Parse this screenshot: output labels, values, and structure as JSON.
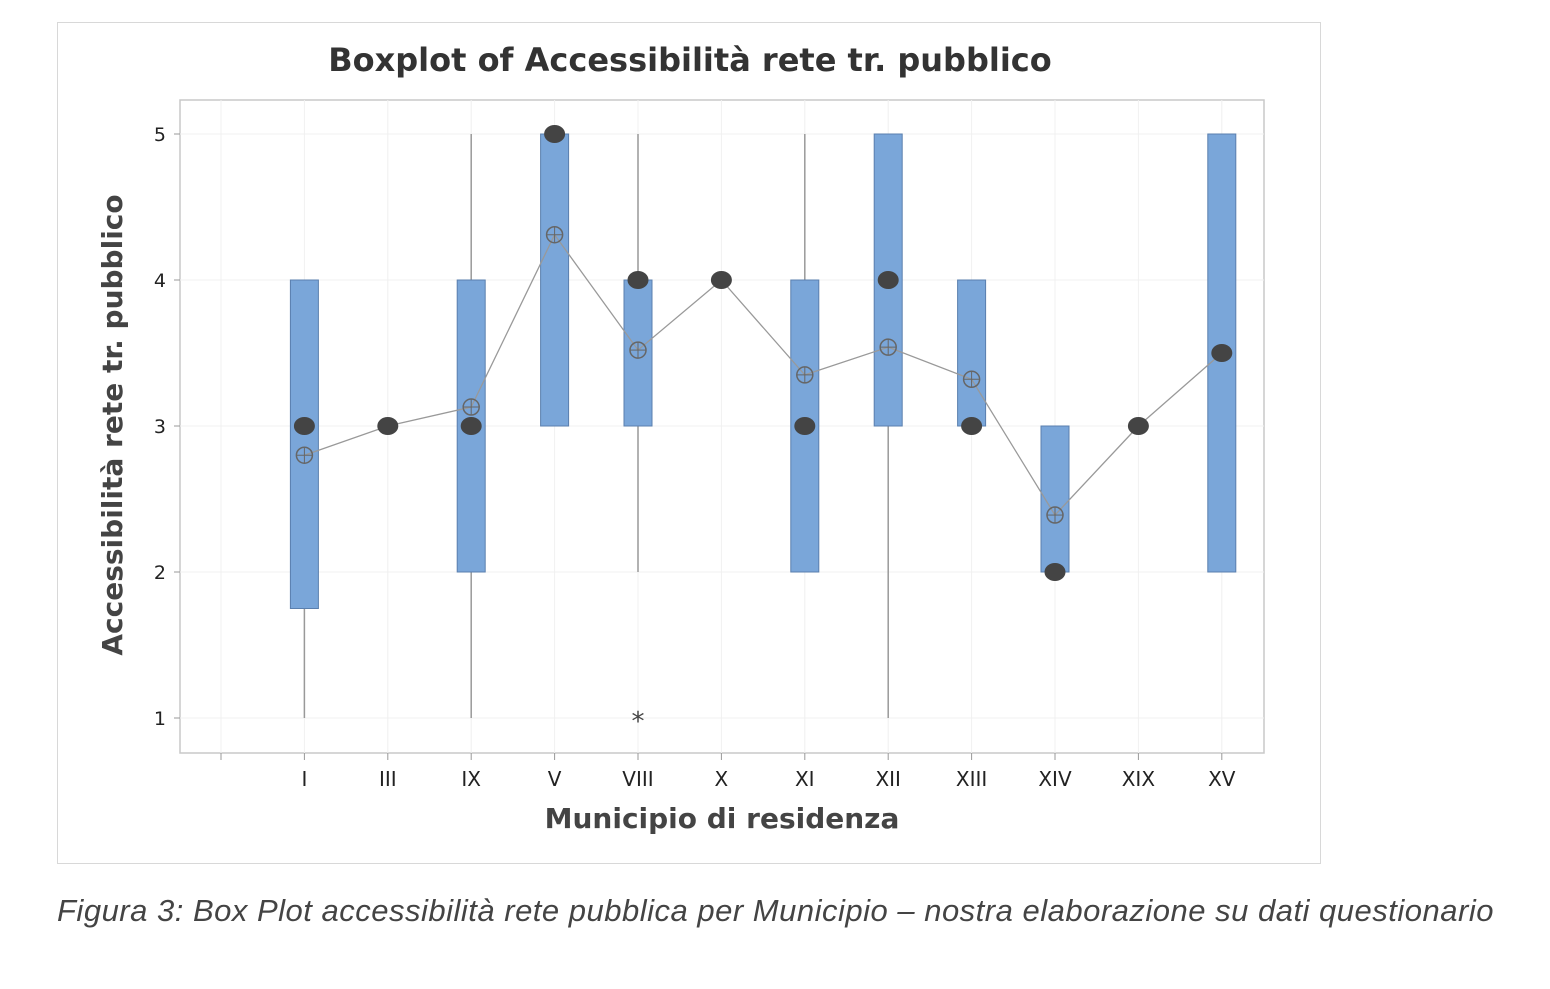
{
  "chart_data": {
    "type": "boxplot",
    "title": "Boxplot of Accessibilità rete tr. pubblico",
    "xlabel": "Municipio di residenza",
    "ylabel": "Accessibilità rete tr. pubblico",
    "ylim": [
      0.9,
      5.2
    ],
    "yticks": [
      "1",
      "2",
      "3",
      "4",
      "5"
    ],
    "grid": true,
    "box_color": "#7aa6d9",
    "box_edge_color": "#5a7fae",
    "marker_color": "#444444",
    "categories": [
      "I",
      "III",
      "IX",
      "V",
      "VIII",
      "X",
      "XI",
      "XII",
      "XIII",
      "XIV",
      "XIX",
      "XV"
    ],
    "boxes": [
      {
        "label": "I",
        "whisker_low": 1,
        "q1": 1.75,
        "q3": 4,
        "whisker_high": 4,
        "median": 3,
        "mean": 2.8,
        "outliers": []
      },
      {
        "label": "III",
        "whisker_low": 3,
        "q1": 3,
        "q3": 3,
        "whisker_high": 3,
        "median": 3,
        "mean": 3,
        "outliers": []
      },
      {
        "label": "IX",
        "whisker_low": 1,
        "q1": 2,
        "q3": 4,
        "whisker_high": 5,
        "median": 3,
        "mean": 3.13,
        "outliers": []
      },
      {
        "label": "V",
        "whisker_low": 3,
        "q1": 3,
        "q3": 5,
        "whisker_high": 5,
        "median": 5,
        "mean": 4.31,
        "outliers": []
      },
      {
        "label": "VIII",
        "whisker_low": 2,
        "q1": 3,
        "q3": 4,
        "whisker_high": 5,
        "median": 4,
        "mean": 3.52,
        "outliers": [
          1
        ]
      },
      {
        "label": "X",
        "whisker_low": 4,
        "q1": 4,
        "q3": 4,
        "whisker_high": 4,
        "median": 4,
        "mean": 4,
        "outliers": []
      },
      {
        "label": "XI",
        "whisker_low": 2,
        "q1": 2,
        "q3": 4,
        "whisker_high": 5,
        "median": 3,
        "mean": 3.35,
        "outliers": []
      },
      {
        "label": "XII",
        "whisker_low": 1,
        "q1": 3,
        "q3": 5,
        "whisker_high": 5,
        "median": 4,
        "mean": 3.54,
        "outliers": []
      },
      {
        "label": "XIII",
        "whisker_low": 3,
        "q1": 3,
        "q3": 4,
        "whisker_high": 4,
        "median": 3,
        "mean": 3.32,
        "outliers": []
      },
      {
        "label": "XIV",
        "whisker_low": 2,
        "q1": 2,
        "q3": 3,
        "whisker_high": 3,
        "median": 2,
        "mean": 2.39,
        "outliers": []
      },
      {
        "label": "XIX",
        "whisker_low": 3,
        "q1": 3,
        "q3": 3,
        "whisker_high": 3,
        "median": 3,
        "mean": 3,
        "outliers": []
      },
      {
        "label": "XV",
        "whisker_low": 2,
        "q1": 2,
        "q3": 5,
        "whisker_high": 5,
        "median": 3.5,
        "mean": 3.5,
        "outliers": []
      }
    ]
  },
  "caption": "Figura 3: Box Plot accessibilità rete pubblica per Municipio – nostra elaborazione su dati questionario"
}
